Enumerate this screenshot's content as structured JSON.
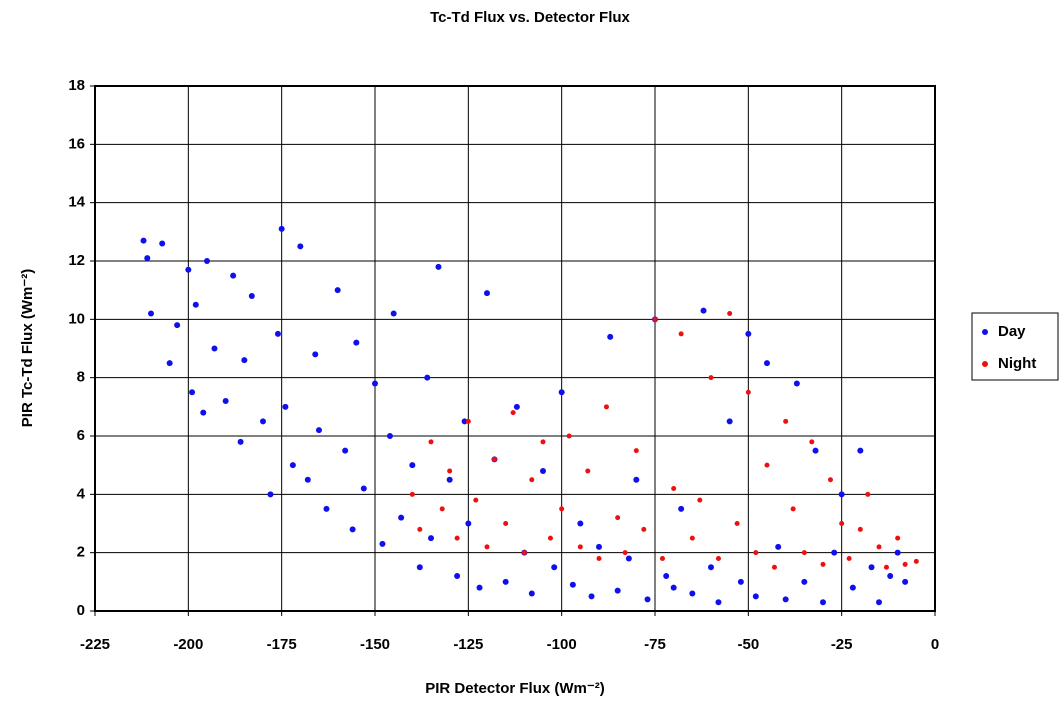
{
  "chart_data": {
    "type": "scatter",
    "title": "Tc-Td Flux vs. Detector Flux",
    "x_label": "PIR Detector Flux (Wm⁻²)",
    "y_label": "PIR Tc-Td Flux (Wm⁻²)",
    "xlim": [
      -225,
      0
    ],
    "xticks": [
      -225,
      -200,
      -175,
      -150,
      -125,
      -100,
      -75,
      -50,
      -25,
      0
    ],
    "ylim": [
      0,
      18
    ],
    "yticks": [
      0,
      2,
      4,
      6,
      8,
      10,
      12,
      14,
      16,
      18
    ],
    "grid": true,
    "legend": "right",
    "series": [
      {
        "name": "Day",
        "color": "#1010ee",
        "x": [
          -212,
          -211,
          -210,
          -207,
          -205,
          -203,
          -200,
          -199,
          -198,
          -196,
          -195,
          -193,
          -190,
          -188,
          -186,
          -185,
          -183,
          -180,
          -178,
          -176,
          -175,
          -174,
          -172,
          -170,
          -168,
          -166,
          -165,
          -163,
          -160,
          -158,
          -156,
          -155,
          -153,
          -150,
          -148,
          -146,
          -145,
          -143,
          -140,
          -138,
          -136,
          -135,
          -133,
          -130,
          -128,
          -126,
          -125,
          -122,
          -120,
          -118,
          -115,
          -112,
          -110,
          -108,
          -105,
          -102,
          -100,
          -97,
          -95,
          -92,
          -90,
          -87,
          -85,
          -82,
          -80,
          -77,
          -75,
          -72,
          -70,
          -68,
          -65,
          -62,
          -60,
          -58,
          -55,
          -52,
          -50,
          -48,
          -45,
          -42,
          -40,
          -37,
          -35,
          -32,
          -30,
          -27,
          -25,
          -22,
          -20,
          -17,
          -15,
          -12,
          -10,
          -8
        ],
        "y": [
          12.7,
          12.1,
          10.2,
          12.6,
          8.5,
          9.8,
          11.7,
          7.5,
          10.5,
          6.8,
          12.0,
          9.0,
          7.2,
          11.5,
          5.8,
          8.6,
          10.8,
          6.5,
          4.0,
          9.5,
          13.1,
          7.0,
          5.0,
          12.5,
          4.5,
          8.8,
          6.2,
          3.5,
          11.0,
          5.5,
          2.8,
          9.2,
          4.2,
          7.8,
          2.3,
          6.0,
          10.2,
          3.2,
          5.0,
          1.5,
          8.0,
          2.5,
          11.8,
          4.5,
          1.2,
          6.5,
          3.0,
          0.8,
          10.9,
          5.2,
          1.0,
          7.0,
          2.0,
          0.6,
          4.8,
          1.5,
          7.5,
          0.9,
          3.0,
          0.5,
          2.2,
          9.4,
          0.7,
          1.8,
          4.5,
          0.4,
          10.0,
          1.2,
          0.8,
          3.5,
          0.6,
          10.3,
          1.5,
          0.3,
          6.5,
          1.0,
          9.5,
          0.5,
          8.5,
          2.2,
          0.4,
          7.8,
          1.0,
          5.5,
          0.3,
          2.0,
          4.0,
          0.8,
          5.5,
          1.5,
          0.3,
          1.2,
          2.0,
          1.0
        ]
      },
      {
        "name": "Night",
        "color": "#ee1010",
        "x": [
          -140,
          -138,
          -135,
          -132,
          -130,
          -128,
          -125,
          -123,
          -120,
          -118,
          -115,
          -113,
          -110,
          -108,
          -105,
          -103,
          -100,
          -98,
          -95,
          -93,
          -90,
          -88,
          -85,
          -83,
          -80,
          -78,
          -75,
          -73,
          -70,
          -68,
          -65,
          -63,
          -60,
          -58,
          -55,
          -53,
          -50,
          -48,
          -45,
          -43,
          -40,
          -38,
          -35,
          -33,
          -30,
          -28,
          -25,
          -23,
          -20,
          -18,
          -15,
          -13,
          -10,
          -8,
          -5
        ],
        "y": [
          4.0,
          2.8,
          5.8,
          3.5,
          4.8,
          2.5,
          6.5,
          3.8,
          2.2,
          5.2,
          3.0,
          6.8,
          2.0,
          4.5,
          5.8,
          2.5,
          3.5,
          6.0,
          2.2,
          4.8,
          1.8,
          7.0,
          3.2,
          2.0,
          5.5,
          2.8,
          10.0,
          1.8,
          4.2,
          9.5,
          2.5,
          3.8,
          8.0,
          1.8,
          10.2,
          3.0,
          7.5,
          2.0,
          5.0,
          1.5,
          6.5,
          3.5,
          2.0,
          5.8,
          1.6,
          4.5,
          3.0,
          1.8,
          2.8,
          4.0,
          2.2,
          1.5,
          2.5,
          1.6,
          1.7
        ]
      }
    ]
  }
}
